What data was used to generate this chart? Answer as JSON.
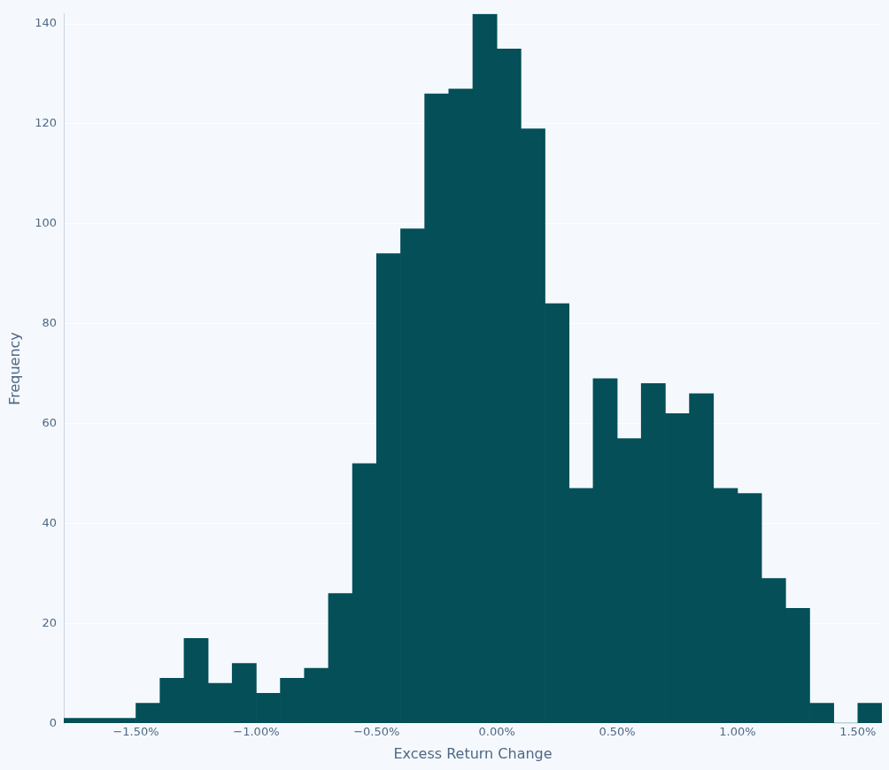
{
  "chart_data": {
    "type": "histogram",
    "xlabel": "Excess Return Change",
    "ylabel": "Frequency",
    "color": "#044f58",
    "bins": [
      -1.8,
      -1.7,
      -1.6,
      -1.5,
      -1.4,
      -1.3,
      -1.2,
      -1.1,
      -1.0,
      -0.9,
      -0.8,
      -0.7,
      -0.6,
      -0.5,
      -0.4,
      -0.3,
      -0.2,
      -0.1,
      0.0,
      0.1,
      0.2,
      0.3,
      0.4,
      0.5,
      0.6,
      0.7,
      0.8,
      0.9,
      1.0,
      1.1,
      1.2,
      1.3,
      1.4,
      1.5,
      1.6
    ],
    "values": [
      1,
      1,
      1,
      4,
      9,
      17,
      8,
      12,
      6,
      9,
      11,
      26,
      52,
      94,
      99,
      126,
      127,
      142,
      135,
      119,
      84,
      47,
      69,
      57,
      68,
      62,
      66,
      47,
      46,
      29,
      23,
      4,
      0,
      4
    ],
    "xlim": [
      -1.8,
      1.6
    ],
    "xticks": [
      {
        "value": -1.5,
        "label": "−1.50%"
      },
      {
        "value": -1.0,
        "label": "−1.00%"
      },
      {
        "value": -0.5,
        "label": "−0.50%"
      },
      {
        "value": 0,
        "label": "0.00%"
      },
      {
        "value": 0.5,
        "label": "0.50%"
      },
      {
        "value": 1.0,
        "label": "1.00%"
      },
      {
        "value": 1.5,
        "label": "1.50%"
      }
    ],
    "ylim": [
      0,
      142
    ],
    "yticks": [
      0,
      20,
      40,
      60,
      80,
      100,
      120,
      140
    ],
    "grid": "y",
    "legend": false
  }
}
